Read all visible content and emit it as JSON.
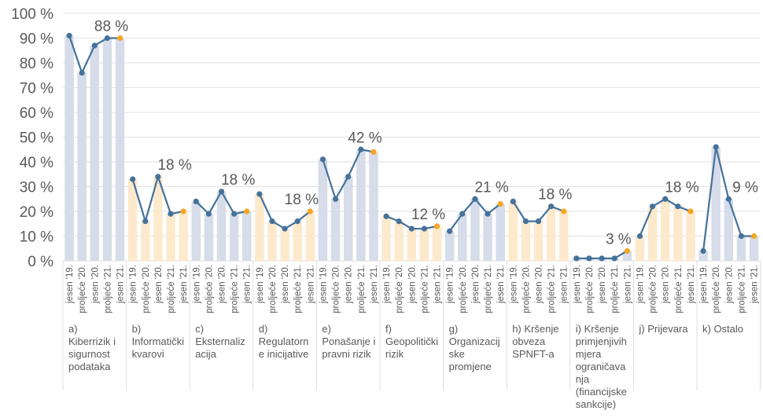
{
  "chart_data": {
    "type": "bar",
    "ylim": [
      0,
      100
    ],
    "ytick_labels": [
      "0 %",
      "10 %",
      "20 %",
      "30 %",
      "40 %",
      "50 %",
      "60 %",
      "70 %",
      "80 %",
      "90 %",
      "100 %"
    ],
    "colors": {
      "bar_blue": "#d6dce9",
      "bar_orange": "#fde9cc",
      "line": "#44729a",
      "last_point": "#f5a623",
      "grid": "#d9d9d9",
      "text": "#595959"
    },
    "groups": [
      {
        "label": "a) Kiberrizik i sigurnost podataka",
        "x": [
          "jesen '19.",
          "proljeće '20.",
          "jesen '20.",
          "proljeće '21.",
          "jesen '21."
        ],
        "values": [
          91,
          76,
          87,
          90,
          90
        ],
        "bar_color": "blue",
        "data_label": "88 %"
      },
      {
        "label": "b) Informatički kvarovi",
        "x": [
          "jesen '19.",
          "proljeće '20.",
          "jesen '20.",
          "proljeće '21.",
          "jesen '21."
        ],
        "values": [
          33,
          16,
          34,
          19,
          20
        ],
        "bar_color": "orange",
        "data_label": "18 %"
      },
      {
        "label": "c) Eksternalizacija",
        "x": [
          "jesen '19.",
          "proljeće '20.",
          "jesen '20.",
          "proljeće '21.",
          "jesen '21."
        ],
        "values": [
          24,
          19,
          28,
          19,
          20
        ],
        "bar_color": "blue",
        "data_label": "18 %"
      },
      {
        "label": "d) Regulatorne inicijative",
        "x": [
          "jesen '19.",
          "proljeće '20.",
          "jesen '20.",
          "proljeće '21.",
          "jesen '21."
        ],
        "values": [
          27,
          16,
          13,
          16,
          20
        ],
        "bar_color": "orange",
        "data_label": "18 %"
      },
      {
        "label": "e) Ponašanje i pravni rizik",
        "x": [
          "jesen '19.",
          "proljeće '20.",
          "jesen '20.",
          "proljeće '21.",
          "jesen '21."
        ],
        "values": [
          41,
          25,
          34,
          45,
          44
        ],
        "bar_color": "blue",
        "data_label": "42 %"
      },
      {
        "label": "f) Geopolitički rizik",
        "x": [
          "jesen '19.",
          "proljeće '20.",
          "jesen '20.",
          "proljeće '21.",
          "jesen '21."
        ],
        "values": [
          18,
          16,
          13,
          13,
          14
        ],
        "bar_color": "orange",
        "data_label": "12 %"
      },
      {
        "label": "g) Organizacijske promjene",
        "x": [
          "jesen '19.",
          "proljeće '20.",
          "jesen '20.",
          "proljeće '21.",
          "jesen '21."
        ],
        "values": [
          12,
          19,
          25,
          19,
          23
        ],
        "bar_color": "blue",
        "data_label": "21 %"
      },
      {
        "label": "h) Kršenje obveza SPNFT-a",
        "x": [
          "jesen '19.",
          "proljeće '20.",
          "jesen '20.",
          "proljeće '21.",
          "jesen '21."
        ],
        "values": [
          24,
          16,
          16,
          22,
          20
        ],
        "bar_color": "orange",
        "data_label": "18 %"
      },
      {
        "label": "i) Kršenje primjenjivih mjera ograničavanja (financijske sankcije)",
        "x": [
          "jesen '19.",
          "proljeće '20.",
          "jesen '20.",
          "proljeće '21.",
          "jesen '21."
        ],
        "values": [
          1,
          1,
          1,
          1,
          4
        ],
        "bar_color": "blue",
        "data_label": "3 %"
      },
      {
        "label": "j) Prijevara",
        "x": [
          "jesen '19.",
          "proljeće '20.",
          "jesen '20.",
          "proljeće '21.",
          "jesen '21."
        ],
        "values": [
          10,
          22,
          25,
          22,
          20
        ],
        "bar_color": "orange",
        "data_label": "18 %"
      },
      {
        "label": "k) Ostalo",
        "x": [
          "jesen '19.",
          "proljeće '20.",
          "jesen '20.",
          "proljeće '21.",
          "jesen '21."
        ],
        "values": [
          4,
          46,
          25,
          10,
          10
        ],
        "bar_color": "blue",
        "data_label": "9 %"
      }
    ]
  }
}
